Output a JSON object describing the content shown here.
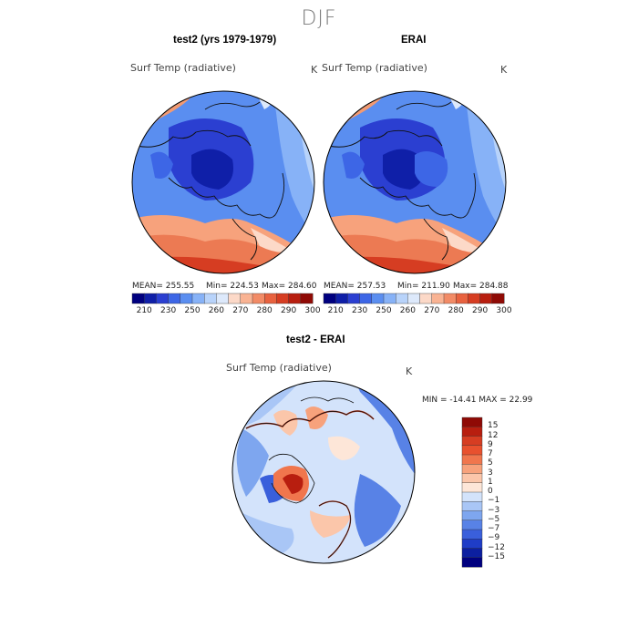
{
  "page": {
    "title": "DJF"
  },
  "panels": [
    {
      "title": "test2 (yrs 1979-1979)",
      "field": "Surf Temp (radiative)",
      "units": "K",
      "stats": {
        "mean": "MEAN= 255.55",
        "min": "Min= 224.53",
        "max": "Max= 284.60"
      }
    },
    {
      "title": "ERAI",
      "field": "Surf Temp (radiative)",
      "units": "K",
      "stats": {
        "mean": "MEAN= 257.53",
        "min": "Min= 211.90",
        "max": "Max= 284.88"
      }
    }
  ],
  "colorbar_abs": {
    "ticks": [
      "210",
      "230",
      "250",
      "260",
      "270",
      "280",
      "290",
      "300"
    ],
    "colors": [
      "#00007f",
      "#0f1fa8",
      "#2b3fd1",
      "#3d66e6",
      "#5b8ef0",
      "#87b2f7",
      "#b8d3fa",
      "#dde9fb",
      "#fcd9c8",
      "#f9b393",
      "#f28b66",
      "#e8623f",
      "#d63d22",
      "#b81e0f",
      "#8f0a05"
    ]
  },
  "diff": {
    "title": "test2 - ERAI",
    "field": "Surf Temp (radiative)",
    "units": "K",
    "minmax": "MIN = -14.41 MAX =  22.99",
    "colorbar": {
      "ticks": [
        "15",
        "12",
        "9",
        "7",
        "5",
        "3",
        "1",
        "0",
        "−1",
        "−3",
        "−5",
        "−7",
        "−9",
        "−12",
        "−15"
      ],
      "colors": [
        "#8f0a05",
        "#b81e0f",
        "#d63d22",
        "#e8512e",
        "#f0764d",
        "#f7a27c",
        "#fbc6aa",
        "#fde6d8",
        "#d3e3fb",
        "#a9c6f6",
        "#7ea6ef",
        "#5882e6",
        "#3a5fdb",
        "#1f3dc7",
        "#0c1fa0",
        "#00007f"
      ]
    }
  }
}
